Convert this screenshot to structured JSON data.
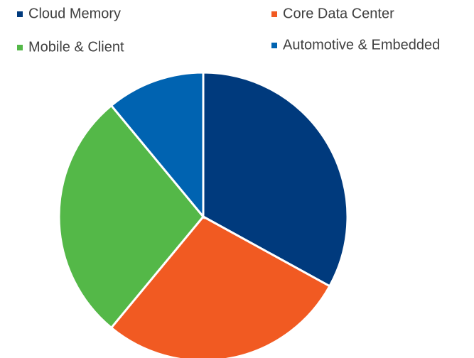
{
  "chart_data": {
    "type": "pie",
    "categories": [
      "Cloud Memory",
      "Core Data Center",
      "Mobile & Client",
      "Automotive & Embedded"
    ],
    "values": [
      33,
      28,
      28,
      11
    ],
    "colors": [
      "#003a7d",
      "#f15a22",
      "#54b848",
      "#0063b1"
    ]
  }
}
